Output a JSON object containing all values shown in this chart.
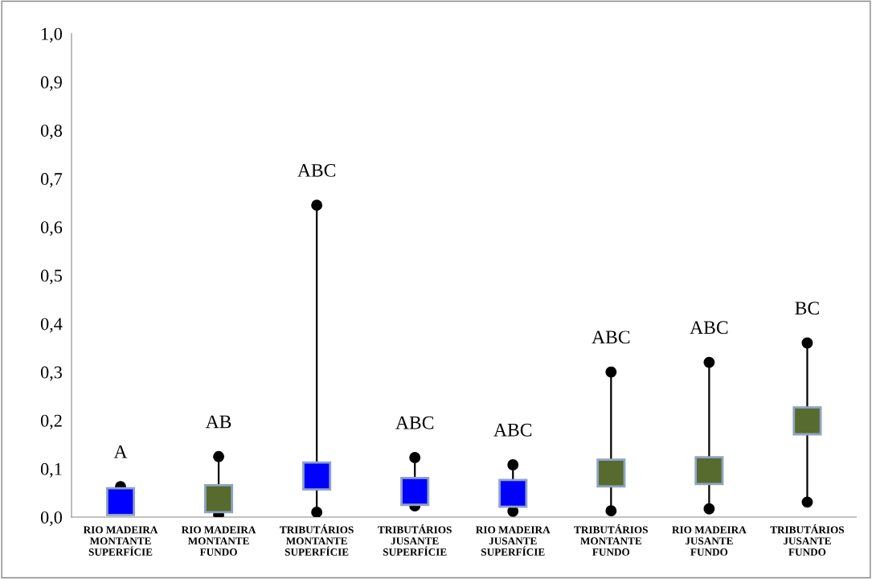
{
  "chart_data": {
    "type": "scatter",
    "categories": [
      "RIO MADEIRA\nMONTANTE\nSUPERFÍCIE",
      "RIO MADEIRA\nMONTANTE\nFUNDO",
      "TRIBUTÁRIOS\nMONTANTE\nSUPERFÍCIE",
      "TRIBUTÁRIOS\nJUSANTE\nSUPERFÍCIE",
      "RIO MADEIRA\nJUSANTE\nSUPERFÍCIE",
      "TRIBUTÁRIOS\nMONTANTE\nFUNDO",
      "RIO MADEIRA\nJUSANTE\nFUNDO",
      "TRIBUTÁRIOS\nJUSANTE\nFUNDO"
    ],
    "series": [
      {
        "values": [
          0.032,
          0.038,
          0.085,
          0.053,
          0.049,
          0.091,
          0.096,
          0.199
        ],
        "colors": [
          "#0000ff",
          "#566b2d",
          "#0000ff",
          "#0000ff",
          "#0000ff",
          "#566b2d",
          "#566b2d",
          "#566b2d"
        ],
        "marker": "square"
      },
      {
        "values": [
          0.063,
          0.125,
          0.645,
          0.123,
          0.108,
          0.3,
          0.32,
          0.36
        ],
        "color": "#000000",
        "marker": "circle"
      },
      {
        "values": [
          null,
          0.005,
          0.01,
          0.023,
          0.012,
          0.013,
          0.017,
          0.031
        ],
        "color": "#000000",
        "marker": "circle"
      }
    ],
    "ylim": [
      0,
      1.0
    ],
    "yticks": [
      {
        "value": 0,
        "label": "0,0"
      },
      {
        "value": 0.1,
        "label": "0,1"
      },
      {
        "value": 0.2,
        "label": "0,2"
      },
      {
        "value": 0.3,
        "label": "0,3"
      },
      {
        "value": 0.4,
        "label": "0,4"
      },
      {
        "value": 0.5,
        "label": "0,5"
      },
      {
        "value": 0.6,
        "label": "0,6"
      },
      {
        "value": 0.7,
        "label": "0,7"
      },
      {
        "value": 0.8,
        "label": "0,8"
      },
      {
        "value": 0.9,
        "label": "0,9"
      },
      {
        "value": 1.0,
        "label": "1,0"
      }
    ],
    "grid": false,
    "legend": false,
    "annotations": [
      "A",
      "AB",
      "ABC",
      "ABC",
      "ABC",
      "ABC",
      "ABC",
      "BC"
    ]
  }
}
